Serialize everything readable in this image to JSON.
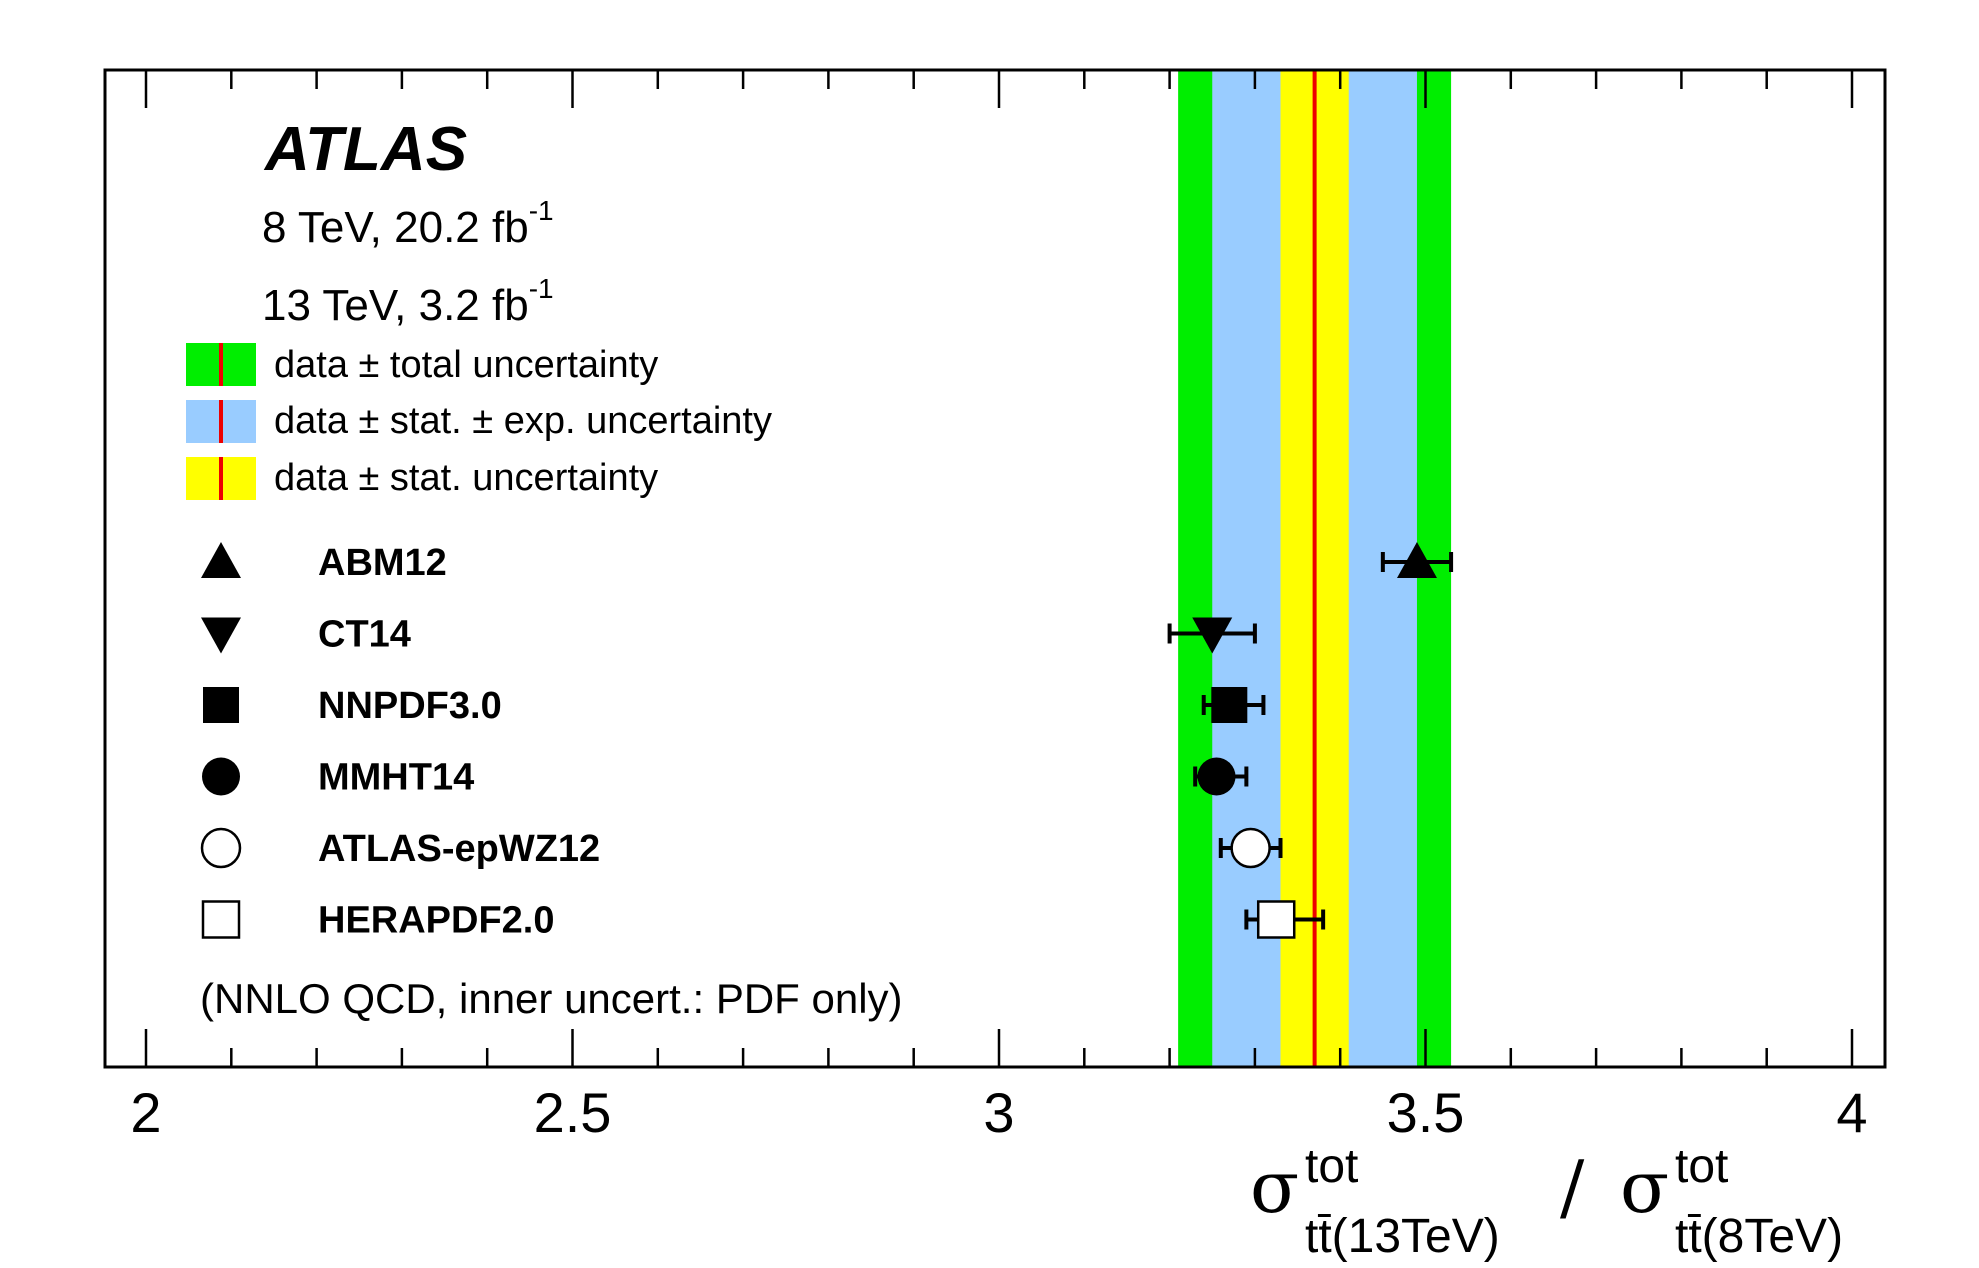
{
  "chart_data": {
    "type": "scatter",
    "title": "ATLAS",
    "lumi_lines": [
      {
        "text": "8 TeV, 20.2 fb",
        "sup": "-1"
      },
      {
        "text": "13 TeV, 3.2 fb",
        "sup": "-1"
      }
    ],
    "xlim": [
      1.95,
      4.04
    ],
    "x_ticks": [
      "2",
      "2.5",
      "3",
      "3.5",
      "4"
    ],
    "xlabel": {
      "sigma": "σ",
      "sup": "tot",
      "num_sub_a": "tt̄(13TeV)",
      "slash": " / ",
      "den_sub_a": "tt̄(8TeV)"
    },
    "measurement": {
      "central": 3.37,
      "stat_band": [
        3.33,
        3.41
      ],
      "stat_exp_band": [
        3.25,
        3.49
      ],
      "total_band": [
        3.21,
        3.53
      ]
    },
    "colors": {
      "total": "#00ee00",
      "stat_exp": "#99ccff",
      "stat": "#ffff00",
      "central_line": "#ee0000"
    },
    "legend": [
      {
        "label": "data ± total uncertainty",
        "color_key": "total"
      },
      {
        "label": "data ± stat. ± exp. uncertainty",
        "color_key": "stat_exp"
      },
      {
        "label": "data ± stat. uncertainty",
        "color_key": "stat"
      }
    ],
    "predictions": [
      {
        "name": "ABM12",
        "marker": "triangle-up",
        "value": 3.49,
        "err_lo": 3.45,
        "err_hi": 3.53
      },
      {
        "name": "CT14",
        "marker": "triangle-down",
        "value": 3.25,
        "err_lo": 3.2,
        "err_hi": 3.3
      },
      {
        "name": "NNPDF3.0",
        "marker": "square-filled",
        "value": 3.27,
        "err_lo": 3.24,
        "err_hi": 3.31
      },
      {
        "name": "MMHT14",
        "marker": "circle-filled",
        "value": 3.255,
        "err_lo": 3.23,
        "err_hi": 3.29
      },
      {
        "name": "ATLAS-epWZ12",
        "marker": "circle-open",
        "value": 3.295,
        "err_lo": 3.26,
        "err_hi": 3.33
      },
      {
        "name": "HERAPDF2.0",
        "marker": "square-open",
        "value": 3.325,
        "err_lo": 3.29,
        "err_hi": 3.38
      }
    ],
    "note": "(NNLO QCD, inner uncert.: PDF only)"
  }
}
